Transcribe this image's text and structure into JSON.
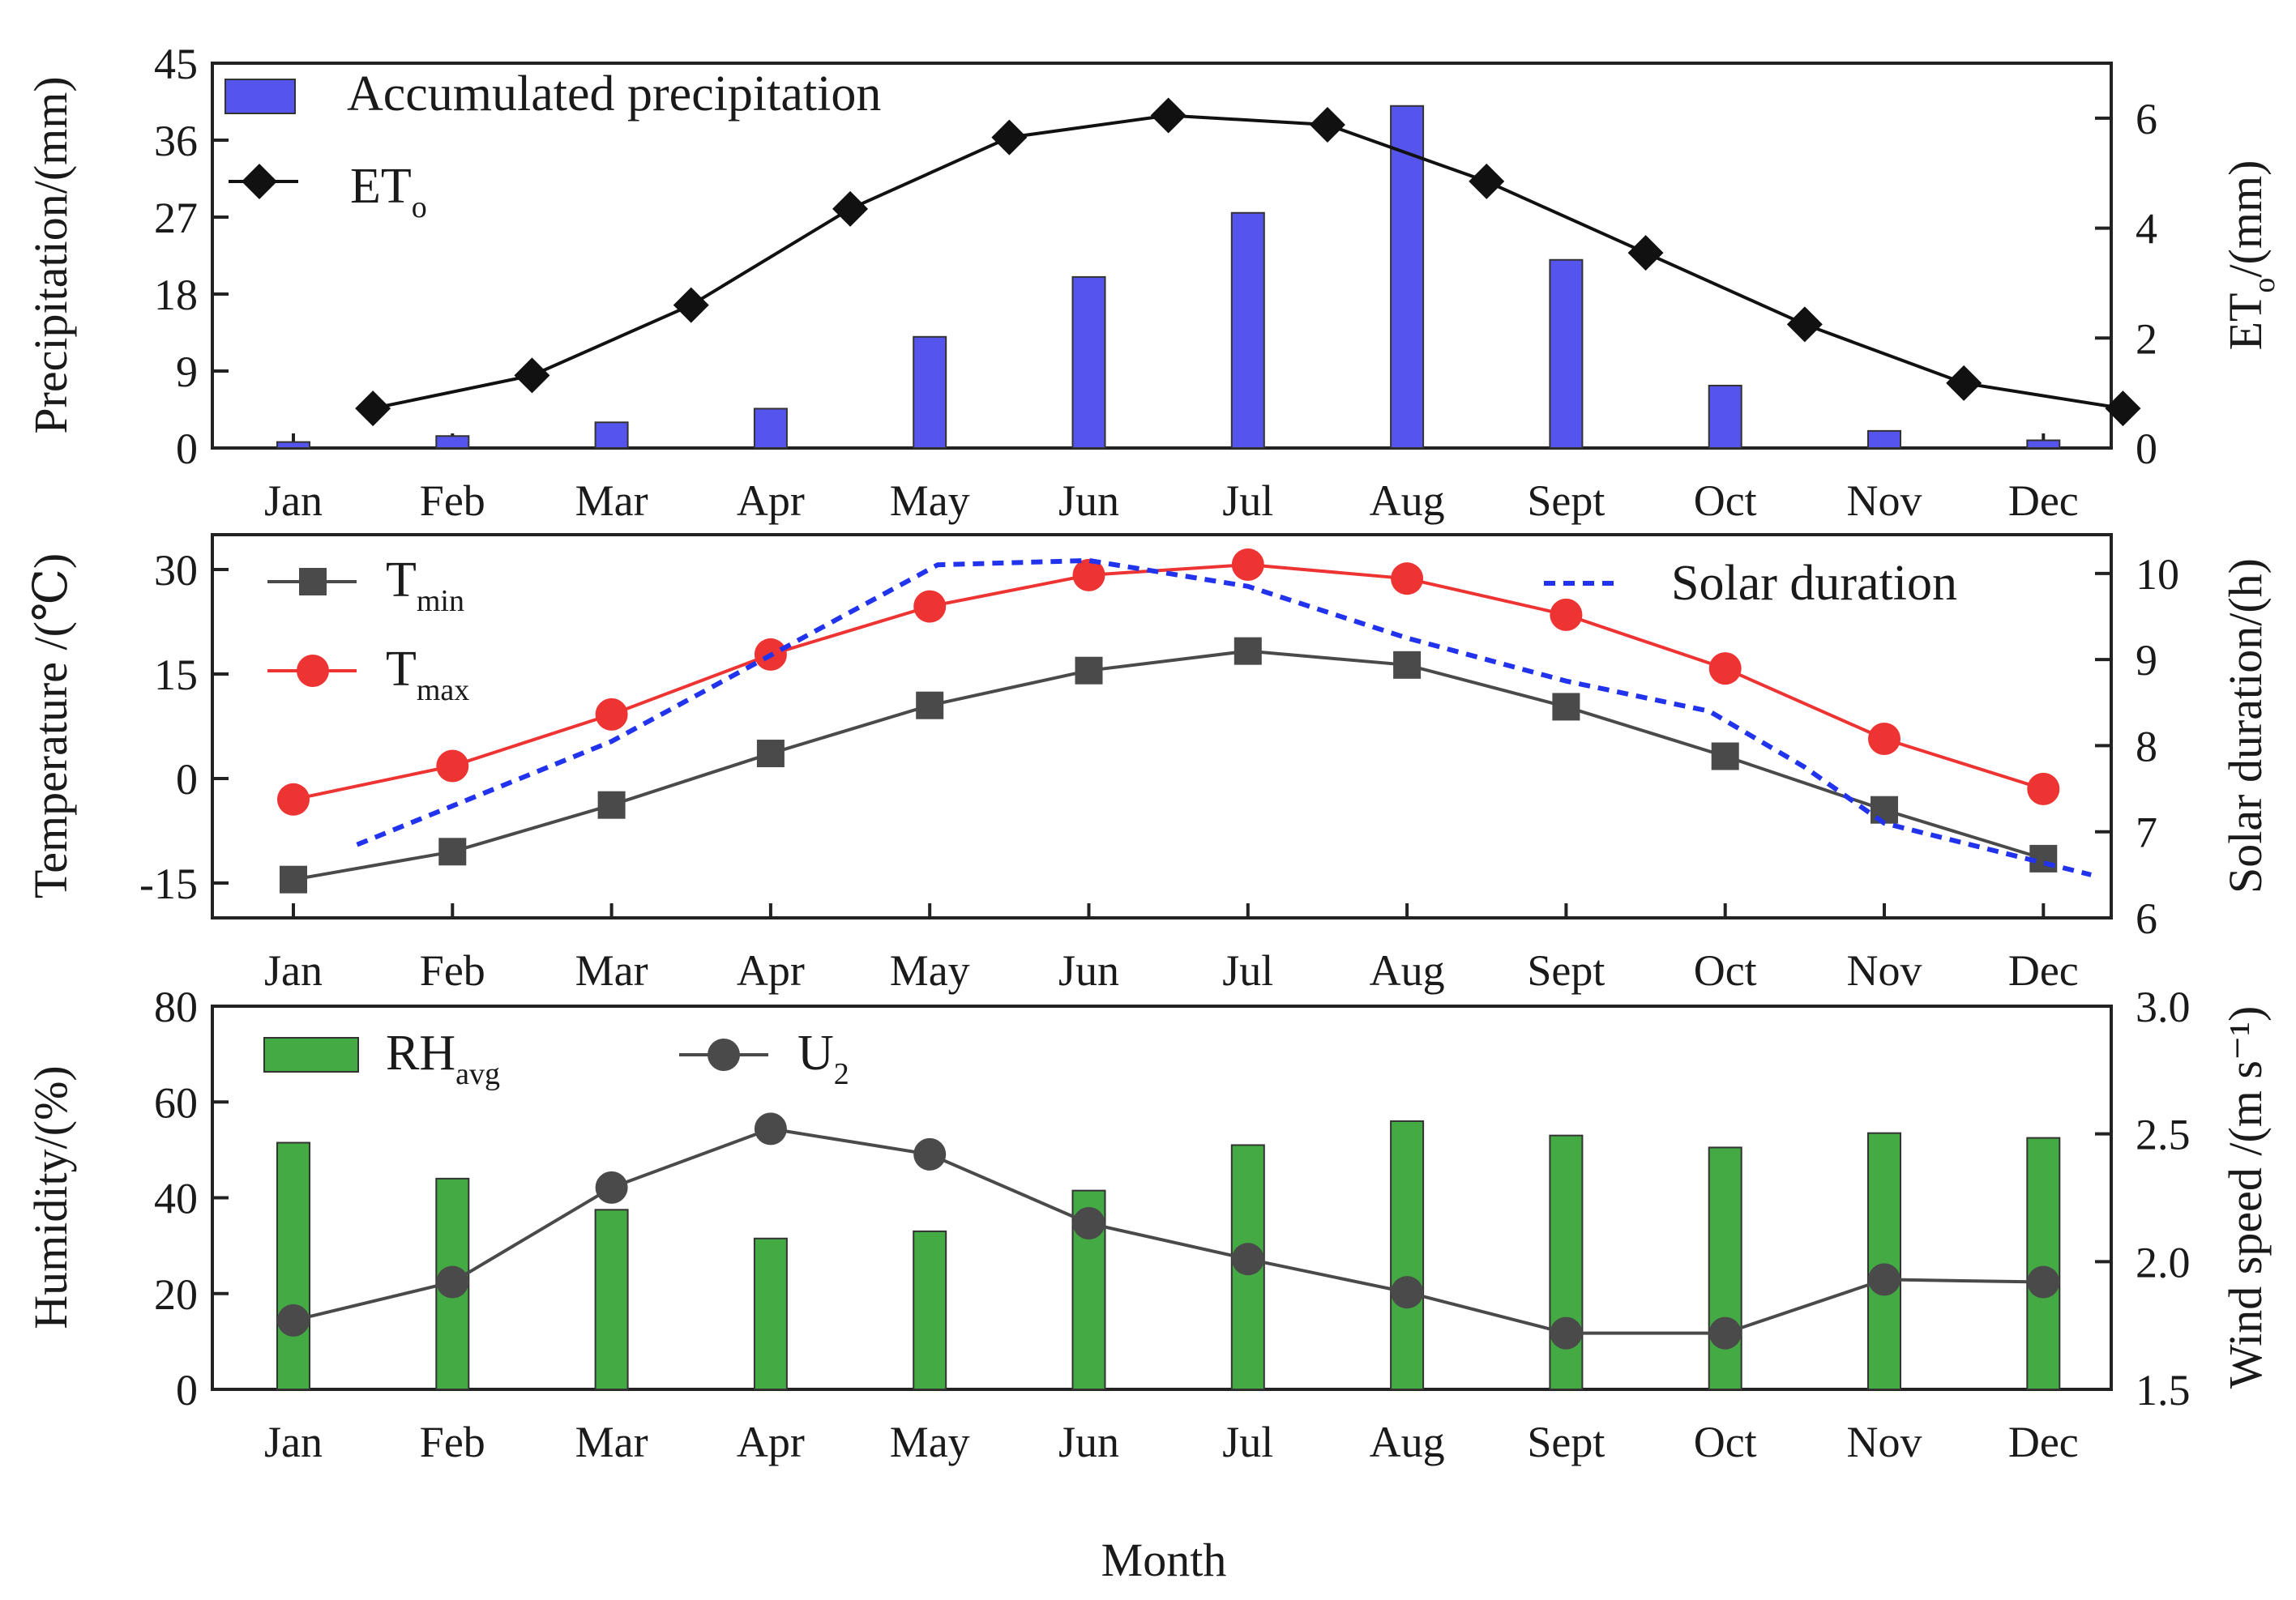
{
  "chart_data": [
    {
      "id": "panel1",
      "type": "bar+line",
      "categories": [
        "Jan",
        "Feb",
        "Mar",
        "Apr",
        "May",
        "Jun",
        "Jul",
        "Aug",
        "Sept",
        "Oct",
        "Nov",
        "Dec"
      ],
      "ylabel_left": "Precipitation/(mm)",
      "ylabel_right": {
        "main": "ET",
        "sub": "o",
        "suffix": "/(mm)"
      },
      "ylim_left": [
        0,
        45
      ],
      "yticks_left": [
        0,
        9,
        18,
        27,
        36,
        45
      ],
      "ylim_right": [
        0,
        7
      ],
      "yticks_right": [
        0,
        2,
        4,
        6
      ],
      "series": [
        {
          "name": "Accumulated precipitation",
          "axis": "left",
          "kind": "bar",
          "color": "#5555ee",
          "values": [
            0.7,
            1.4,
            3.0,
            4.6,
            13.0,
            20.0,
            27.5,
            40.0,
            22.0,
            7.3,
            2.0,
            0.9
          ]
        },
        {
          "name": "ET",
          "name_sub": "o",
          "axis": "right",
          "kind": "line",
          "marker": "diamond",
          "color": "#111111",
          "x_offset": 0.5,
          "values": [
            0.72,
            1.32,
            2.6,
            4.35,
            5.65,
            6.05,
            5.88,
            4.85,
            3.55,
            2.25,
            1.18,
            0.72
          ]
        }
      ]
    },
    {
      "id": "panel2",
      "type": "line",
      "categories": [
        "Jan",
        "Feb",
        "Mar",
        "Apr",
        "May",
        "Jun",
        "Jul",
        "Aug",
        "Sept",
        "Oct",
        "Nov",
        "Dec"
      ],
      "ylabel_left": "Temperature /(℃)",
      "ylabel_right": "Solar duration/(h)",
      "ylim_left": [
        -20,
        35
      ],
      "yticks_left": [
        -15,
        0,
        15,
        30
      ],
      "ylim_right": [
        6,
        10.45
      ],
      "yticks_right": [
        6,
        7,
        8,
        9,
        10
      ],
      "series": [
        {
          "name": "T",
          "name_sub": "min",
          "axis": "left",
          "kind": "line",
          "marker": "square",
          "color": "#4a4a4a",
          "values": [
            -14.5,
            -10.5,
            -3.8,
            3.6,
            10.5,
            15.5,
            18.3,
            16.3,
            10.3,
            3.2,
            -4.5,
            -11.5
          ]
        },
        {
          "name": "T",
          "name_sub": "max",
          "axis": "left",
          "kind": "line",
          "marker": "circle",
          "color": "#ee3333",
          "values": [
            -3.0,
            1.8,
            9.2,
            17.8,
            24.7,
            29.2,
            30.7,
            28.7,
            23.5,
            15.8,
            5.7,
            -1.5
          ]
        },
        {
          "name": "Solar duration",
          "axis": "right",
          "kind": "dashed-line",
          "color": "#2233ee",
          "x": [
            0.4,
            1,
            2,
            3,
            4.05,
            5.0,
            6.0,
            7.0,
            8.0,
            8.9,
            9.5,
            10,
            11.3
          ],
          "values": [
            6.85,
            7.3,
            8.05,
            9.05,
            10.1,
            10.15,
            9.85,
            9.25,
            8.75,
            8.4,
            7.75,
            7.1,
            6.5
          ]
        }
      ]
    },
    {
      "id": "panel3",
      "type": "bar+line",
      "categories": [
        "Jan",
        "Feb",
        "Mar",
        "Apr",
        "May",
        "Jun",
        "Jul",
        "Aug",
        "Sept",
        "Oct",
        "Nov",
        "Dec"
      ],
      "xlabel": "Month",
      "ylabel_left": "Humidity/(%)",
      "ylabel_right": "Wind speed /(m s⁻¹)",
      "ylim_left": [
        0,
        80
      ],
      "yticks_left": [
        0,
        20,
        40,
        60,
        80
      ],
      "ylim_right": [
        1.5,
        3.0
      ],
      "yticks_right": [
        "1.5",
        "2.0",
        "2.5",
        "3.0"
      ],
      "series": [
        {
          "name": "RH",
          "name_sub": "avg",
          "axis": "left",
          "kind": "bar",
          "color": "#44aa44",
          "values": [
            51.5,
            44.0,
            37.5,
            31.5,
            33.0,
            41.5,
            51.0,
            56.0,
            53.0,
            50.5,
            53.5,
            52.5
          ]
        },
        {
          "name": "U",
          "name_sub": "2",
          "axis": "right",
          "kind": "line",
          "marker": "circle",
          "color": "#4a4a4a",
          "values": [
            1.77,
            1.92,
            2.29,
            2.52,
            2.42,
            2.15,
            2.01,
            1.88,
            1.72,
            1.72,
            1.93,
            1.92
          ]
        }
      ]
    }
  ]
}
